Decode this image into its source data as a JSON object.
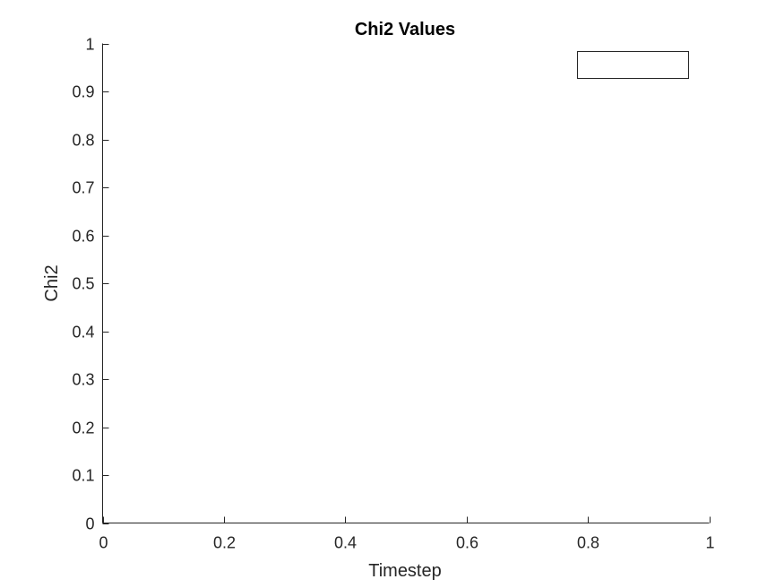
{
  "chart_data": {
    "type": "line",
    "title": "Chi2 Values",
    "xlabel": "Timestep",
    "ylabel": "Chi2",
    "xlim": [
      0,
      1
    ],
    "ylim": [
      0,
      1
    ],
    "x_ticks": [
      0,
      0.2,
      0.4,
      0.6,
      0.8,
      1
    ],
    "x_tick_labels": [
      "0",
      "0.2",
      "0.4",
      "0.6",
      "0.8",
      "1"
    ],
    "y_ticks": [
      0,
      0.1,
      0.2,
      0.3,
      0.4,
      0.5,
      0.6,
      0.7,
      0.8,
      0.9,
      1
    ],
    "y_tick_labels": [
      "0",
      "0.1",
      "0.2",
      "0.3",
      "0.4",
      "0.5",
      "0.6",
      "0.7",
      "0.8",
      "0.9",
      "1"
    ],
    "grid": false,
    "legend": {
      "placement": "top-right",
      "entries": []
    },
    "series": []
  },
  "colors": {
    "axis": "#262626",
    "title": "#000000",
    "background": "#ffffff"
  }
}
